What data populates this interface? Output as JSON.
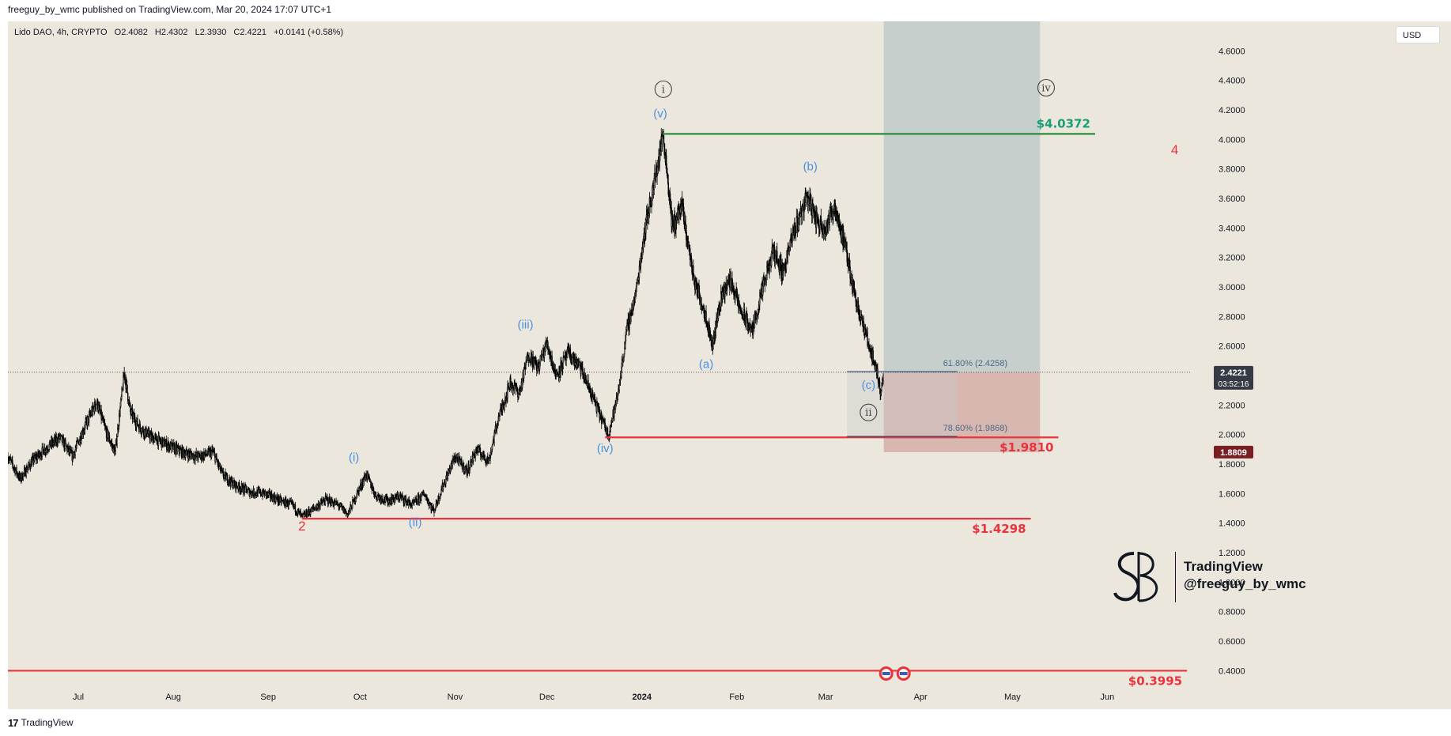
{
  "header": {
    "published_line": "freeguy_by_wmc published on TradingView.com, Mar 20, 2024 17:07 UTC+1"
  },
  "legend": {
    "symbol": "Lido DAO, 4h, CRYPTO",
    "open": "O2.4082",
    "high": "H2.4302",
    "low": "L2.3930",
    "close": "C2.4221",
    "change": "+0.0141 (+0.58%)"
  },
  "currency_button": "USD",
  "footer": {
    "brand": "TradingView"
  },
  "watermark": {
    "line1": "TradingView",
    "line2": "@freeguy_by_wmc"
  },
  "colors": {
    "background": "#ebe7dc",
    "candle": "#000000",
    "support": "#e8333c",
    "target": "#2e8b3e",
    "target_text": "#1a9e78",
    "wave_blue": "#4a90e2",
    "wave_red": "#e8333c",
    "profit_zone": "#c6cfcb",
    "loss_zone": "#d8b7b0",
    "price_tag": "#363a45",
    "low_tag": "#7a1e22"
  },
  "chart_data": {
    "type": "candlestick",
    "symbol": "Lido DAO",
    "interval": "4h",
    "exchange": "CRYPTO",
    "y_axis": {
      "scale": "linear",
      "range": [
        0.3,
        4.8
      ],
      "ticks": [
        "4.6000",
        "4.4000",
        "4.2000",
        "4.0000",
        "3.8000",
        "3.6000",
        "3.4000",
        "3.2000",
        "3.0000",
        "2.8000",
        "2.6000",
        "2.4000",
        "2.2000",
        "2.0000",
        "1.8000",
        "1.6000",
        "1.4000",
        "1.2000",
        "1.0000",
        "0.8000",
        "0.6000",
        "0.4000"
      ]
    },
    "x_axis": {
      "range": [
        "2023-06-08",
        "2024-06-28"
      ],
      "ticks": [
        {
          "label": "Jul",
          "date": "2023-07-01",
          "bold": false
        },
        {
          "label": "Aug",
          "date": "2023-08-01",
          "bold": false
        },
        {
          "label": "Sep",
          "date": "2023-09-01",
          "bold": false
        },
        {
          "label": "Oct",
          "date": "2023-10-01",
          "bold": false
        },
        {
          "label": "Nov",
          "date": "2023-11-01",
          "bold": false
        },
        {
          "label": "Dec",
          "date": "2023-12-01",
          "bold": false
        },
        {
          "label": "2024",
          "date": "2024-01-01",
          "bold": true
        },
        {
          "label": "Feb",
          "date": "2024-02-01",
          "bold": false
        },
        {
          "label": "Mar",
          "date": "2024-03-01",
          "bold": false
        },
        {
          "label": "Apr",
          "date": "2024-04-01",
          "bold": false
        },
        {
          "label": "May",
          "date": "2024-05-01",
          "bold": false
        },
        {
          "label": "Jun",
          "date": "2024-06-01",
          "bold": false
        }
      ]
    },
    "price_path": [
      [
        "2023-06-08",
        1.85
      ],
      [
        "2023-06-12",
        1.7
      ],
      [
        "2023-06-16",
        1.82
      ],
      [
        "2023-06-20",
        1.9
      ],
      [
        "2023-06-25",
        1.98
      ],
      [
        "2023-06-29",
        1.85
      ],
      [
        "2023-07-03",
        2.05
      ],
      [
        "2023-07-07",
        2.22
      ],
      [
        "2023-07-10",
        2.02
      ],
      [
        "2023-07-13",
        1.88
      ],
      [
        "2023-07-16",
        2.42
      ],
      [
        "2023-07-18",
        2.15
      ],
      [
        "2023-07-21",
        2.05
      ],
      [
        "2023-07-25",
        1.98
      ],
      [
        "2023-07-30",
        1.93
      ],
      [
        "2023-08-04",
        1.88
      ],
      [
        "2023-08-09",
        1.85
      ],
      [
        "2023-08-14",
        1.88
      ],
      [
        "2023-08-17",
        1.73
      ],
      [
        "2023-08-21",
        1.66
      ],
      [
        "2023-08-26",
        1.61
      ],
      [
        "2023-08-31",
        1.6
      ],
      [
        "2023-09-05",
        1.55
      ],
      [
        "2023-09-09",
        1.52
      ],
      [
        "2023-09-12",
        1.44
      ],
      [
        "2023-09-16",
        1.5
      ],
      [
        "2023-09-20",
        1.56
      ],
      [
        "2023-09-24",
        1.52
      ],
      [
        "2023-09-27",
        1.46
      ],
      [
        "2023-09-30",
        1.6
      ],
      [
        "2023-10-03",
        1.73
      ],
      [
        "2023-10-06",
        1.59
      ],
      [
        "2023-10-10",
        1.55
      ],
      [
        "2023-10-14",
        1.58
      ],
      [
        "2023-10-18",
        1.52
      ],
      [
        "2023-10-22",
        1.6
      ],
      [
        "2023-10-25",
        1.48
      ],
      [
        "2023-10-28",
        1.65
      ],
      [
        "2023-11-01",
        1.85
      ],
      [
        "2023-11-05",
        1.75
      ],
      [
        "2023-11-08",
        1.9
      ],
      [
        "2023-11-12",
        1.82
      ],
      [
        "2023-11-15",
        2.1
      ],
      [
        "2023-11-19",
        2.35
      ],
      [
        "2023-11-22",
        2.28
      ],
      [
        "2023-11-25",
        2.55
      ],
      [
        "2023-11-28",
        2.45
      ],
      [
        "2023-12-01",
        2.62
      ],
      [
        "2023-12-04",
        2.4
      ],
      [
        "2023-12-08",
        2.55
      ],
      [
        "2023-12-12",
        2.45
      ],
      [
        "2023-12-15",
        2.3
      ],
      [
        "2023-12-18",
        2.15
      ],
      [
        "2023-12-21",
        2.0
      ],
      [
        "2023-12-24",
        2.25
      ],
      [
        "2023-12-27",
        2.7
      ],
      [
        "2023-12-30",
        2.95
      ],
      [
        "2024-01-02",
        3.4
      ],
      [
        "2024-01-05",
        3.7
      ],
      [
        "2024-01-08",
        4.04
      ],
      [
        "2024-01-11",
        3.4
      ],
      [
        "2024-01-14",
        3.55
      ],
      [
        "2024-01-18",
        3.05
      ],
      [
        "2024-01-22",
        2.8
      ],
      [
        "2024-01-24",
        2.6
      ],
      [
        "2024-01-27",
        2.95
      ],
      [
        "2024-01-30",
        3.05
      ],
      [
        "2024-02-02",
        2.85
      ],
      [
        "2024-02-06",
        2.7
      ],
      [
        "2024-02-09",
        2.95
      ],
      [
        "2024-02-13",
        3.25
      ],
      [
        "2024-02-16",
        3.1
      ],
      [
        "2024-02-20",
        3.4
      ],
      [
        "2024-02-24",
        3.62
      ],
      [
        "2024-02-27",
        3.45
      ],
      [
        "2024-03-01",
        3.4
      ],
      [
        "2024-03-04",
        3.55
      ],
      [
        "2024-03-07",
        3.3
      ],
      [
        "2024-03-10",
        3.0
      ],
      [
        "2024-03-13",
        2.75
      ],
      [
        "2024-03-16",
        2.55
      ],
      [
        "2024-03-18",
        2.4
      ],
      [
        "2024-03-19",
        2.28
      ],
      [
        "2024-03-20",
        2.4221
      ]
    ],
    "horizontal_levels": [
      {
        "label": "$4.0372",
        "price": 4.0372,
        "from": "2024-01-08",
        "to": "2024-05-28",
        "color": "#2e8b3e"
      },
      {
        "label": "$1.9810",
        "price": 1.981,
        "from": "2023-12-20",
        "to": "2024-05-16",
        "color": "#e8333c"
      },
      {
        "label": "$1.4298",
        "price": 1.4298,
        "from": "2023-09-12",
        "to": "2024-05-07",
        "color": "#e8333c"
      },
      {
        "label": "$0.3995",
        "price": 0.3995,
        "from": "2023-06-08",
        "to": "2024-06-27",
        "color": "#e8333c"
      }
    ],
    "fib_levels": [
      {
        "label": "61.80% (2.4258)",
        "price": 2.4258,
        "from": "2024-03-08",
        "to": "2024-04-13"
      },
      {
        "label": "78.60% (1.9868)",
        "price": 1.9868,
        "from": "2024-03-08",
        "to": "2024-04-13"
      }
    ],
    "position_tool": {
      "from": "2024-03-20",
      "to": "2024-05-10",
      "entry": 2.4221,
      "target": 4.8,
      "stop": 1.88
    },
    "wave_labels": [
      {
        "text": "2",
        "date": "2023-09-12",
        "price": 1.35,
        "color": "#e8333c"
      },
      {
        "text": "(i)",
        "date": "2023-09-29",
        "price": 1.82,
        "color": "#4a90e2"
      },
      {
        "text": "(ii)",
        "date": "2023-10-19",
        "price": 1.38,
        "color": "#4a90e2"
      },
      {
        "text": "(iii)",
        "date": "2023-11-24",
        "price": 2.72,
        "color": "#4a90e2"
      },
      {
        "text": "(iv)",
        "date": "2023-12-20",
        "price": 1.88,
        "color": "#4a90e2"
      },
      {
        "text": "(v)",
        "date": "2024-01-07",
        "price": 4.15,
        "color": "#4a90e2"
      },
      {
        "text": "(a)",
        "date": "2024-01-22",
        "price": 2.45,
        "color": "#4a90e2"
      },
      {
        "text": "(b)",
        "date": "2024-02-25",
        "price": 3.79,
        "color": "#4a90e2"
      },
      {
        "text": "(c)",
        "date": "2024-03-15",
        "price": 2.31,
        "color": "#4a90e2"
      },
      {
        "text": "4",
        "date": "2024-06-23",
        "price": 3.9,
        "color": "#e8333c"
      }
    ],
    "circled_labels": [
      {
        "text": "i",
        "date": "2024-01-08",
        "price": 4.34
      },
      {
        "text": "ii",
        "date": "2024-03-15",
        "price": 2.15
      },
      {
        "text": "iv",
        "date": "2024-05-12",
        "price": 4.35
      }
    ],
    "price_tags": [
      {
        "label": "2.4221",
        "sub": "03:52:16",
        "price": 2.4221,
        "color": "#363a45"
      },
      {
        "label": "1.8809",
        "price": 1.8809,
        "color": "#7a1e22"
      }
    ]
  }
}
